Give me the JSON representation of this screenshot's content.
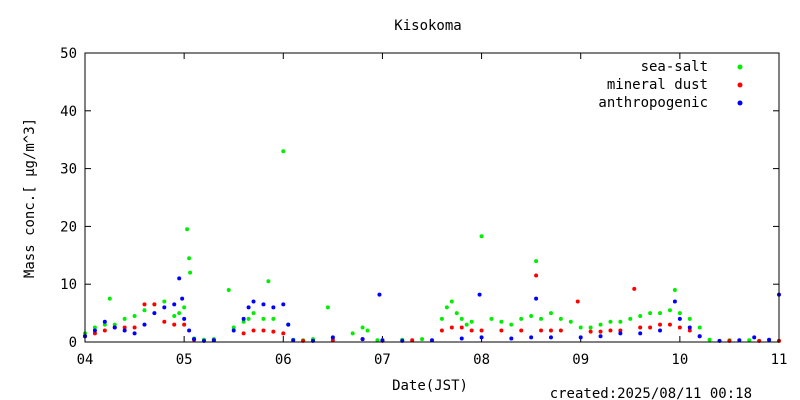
{
  "chart_data": {
    "type": "scatter",
    "title": "Kisokoma",
    "xlabel": "Date(JST)",
    "ylabel": "Mass conc.[ μg/m^3]",
    "created": "created:2025/08/11 00:18",
    "xlim": [
      4,
      11
    ],
    "ylim": [
      0,
      50
    ],
    "x_ticks": [
      {
        "value": 4,
        "label": "04"
      },
      {
        "value": 5,
        "label": "05"
      },
      {
        "value": 6,
        "label": "06"
      },
      {
        "value": 7,
        "label": "07"
      },
      {
        "value": 8,
        "label": "08"
      },
      {
        "value": 9,
        "label": "09"
      },
      {
        "value": 10,
        "label": "10"
      },
      {
        "value": 11,
        "label": "11"
      }
    ],
    "y_ticks": [
      {
        "value": 0,
        "label": "0"
      },
      {
        "value": 10,
        "label": "10"
      },
      {
        "value": 20,
        "label": "20"
      },
      {
        "value": 30,
        "label": "30"
      },
      {
        "value": 40,
        "label": "40"
      },
      {
        "value": 50,
        "label": "50"
      }
    ],
    "grid": false,
    "legend_position": "top-right",
    "series": [
      {
        "name": "sea-salt",
        "color": "#00ee00",
        "x": [
          4.0,
          4.1,
          4.2,
          4.25,
          4.3,
          4.4,
          4.5,
          4.6,
          4.7,
          4.8,
          4.9,
          4.95,
          5.0,
          5.03,
          5.05,
          5.06,
          5.1,
          5.2,
          5.3,
          5.45,
          5.5,
          5.6,
          5.65,
          5.7,
          5.8,
          5.85,
          5.9,
          6.0,
          6.05,
          6.1,
          6.2,
          6.3,
          6.45,
          6.5,
          6.7,
          6.8,
          6.85,
          6.95,
          7.0,
          7.2,
          7.4,
          7.6,
          7.65,
          7.7,
          7.75,
          7.8,
          7.85,
          7.9,
          8.0,
          8.1,
          8.2,
          8.3,
          8.4,
          8.5,
          8.55,
          8.6,
          8.7,
          8.8,
          8.9,
          9.0,
          9.1,
          9.2,
          9.3,
          9.4,
          9.5,
          9.6,
          9.7,
          9.8,
          9.9,
          9.95,
          10.0,
          10.1,
          10.2,
          10.3,
          10.5,
          10.7,
          10.9,
          11.0
        ],
        "y": [
          1.5,
          2.5,
          3,
          7.5,
          3,
          4,
          4.5,
          5.5,
          6.5,
          7,
          4.5,
          5,
          6,
          19.5,
          14.5,
          12,
          0.6,
          0.4,
          0.5,
          9,
          2.5,
          3.5,
          4,
          5,
          4,
          10.5,
          4,
          33,
          3,
          0.4,
          0.3,
          0.5,
          6,
          0.7,
          1.5,
          2.5,
          2,
          0.3,
          0.3,
          0.4,
          0.5,
          4,
          6,
          7,
          5,
          4,
          3,
          3.5,
          18.3,
          4,
          3.5,
          3,
          4,
          4.5,
          14,
          4,
          5,
          4,
          3.5,
          2.5,
          2.5,
          3,
          3.5,
          3.5,
          4,
          4.5,
          5,
          5,
          5.5,
          9,
          5,
          4,
          2.5,
          0.4,
          0.3,
          0.3,
          0.3,
          0.2
        ]
      },
      {
        "name": "mineral dust",
        "color": "#ff0000",
        "x": [
          4.0,
          4.1,
          4.2,
          4.3,
          4.4,
          4.5,
          4.6,
          4.7,
          4.8,
          4.9,
          5.0,
          5.1,
          5.3,
          5.6,
          5.7,
          5.8,
          5.9,
          6.0,
          6.2,
          6.5,
          6.8,
          7.0,
          7.3,
          7.6,
          7.7,
          7.8,
          7.9,
          8.0,
          8.2,
          8.4,
          8.55,
          8.6,
          8.7,
          8.8,
          8.97,
          9.1,
          9.2,
          9.3,
          9.4,
          9.54,
          9.6,
          9.7,
          9.8,
          9.9,
          10.0,
          10.1,
          10.2,
          10.5,
          10.8,
          11.0
        ],
        "y": [
          1,
          1.5,
          2,
          2.5,
          2.5,
          2.5,
          6.5,
          6.5,
          3.5,
          3,
          3,
          0.4,
          0.3,
          1.5,
          2,
          2,
          1.8,
          1.5,
          0.2,
          0.3,
          0.5,
          0.2,
          0.3,
          2,
          2.5,
          2.5,
          2,
          2,
          2,
          2,
          11.5,
          2,
          2,
          2,
          7,
          1.8,
          1.8,
          2,
          2,
          9.2,
          2.5,
          2.5,
          3,
          3,
          2.5,
          2,
          1,
          0.2,
          0.2,
          0.2
        ]
      },
      {
        "name": "anthropogenic",
        "color": "#0000ff",
        "x": [
          4.0,
          4.1,
          4.2,
          4.3,
          4.4,
          4.5,
          4.6,
          4.7,
          4.8,
          4.9,
          4.95,
          4.98,
          5.0,
          5.05,
          5.1,
          5.2,
          5.3,
          5.5,
          5.6,
          5.65,
          5.7,
          5.8,
          5.9,
          6.0,
          6.05,
          6.1,
          6.3,
          6.5,
          6.8,
          6.97,
          7.0,
          7.2,
          7.5,
          7.8,
          7.98,
          8.0,
          8.3,
          8.5,
          8.55,
          8.7,
          9.0,
          9.2,
          9.4,
          9.6,
          9.8,
          9.95,
          10.0,
          10.1,
          10.2,
          10.4,
          10.6,
          10.75,
          10.9,
          11.0
        ],
        "y": [
          1,
          2,
          3.5,
          2.5,
          2,
          1.5,
          3,
          5,
          6,
          6.5,
          11,
          7.5,
          4,
          2,
          0.5,
          0.2,
          0.3,
          2,
          4,
          6,
          7,
          6.5,
          6,
          6.5,
          3,
          0.3,
          0.2,
          0.8,
          0.5,
          8.2,
          0.3,
          0.2,
          0.3,
          0.6,
          8.2,
          0.8,
          0.6,
          0.8,
          7.5,
          0.8,
          0.8,
          1,
          1.5,
          1.5,
          2,
          7,
          4,
          2.5,
          1,
          0.2,
          0.3,
          0.8,
          0.4,
          8.2
        ]
      }
    ]
  }
}
